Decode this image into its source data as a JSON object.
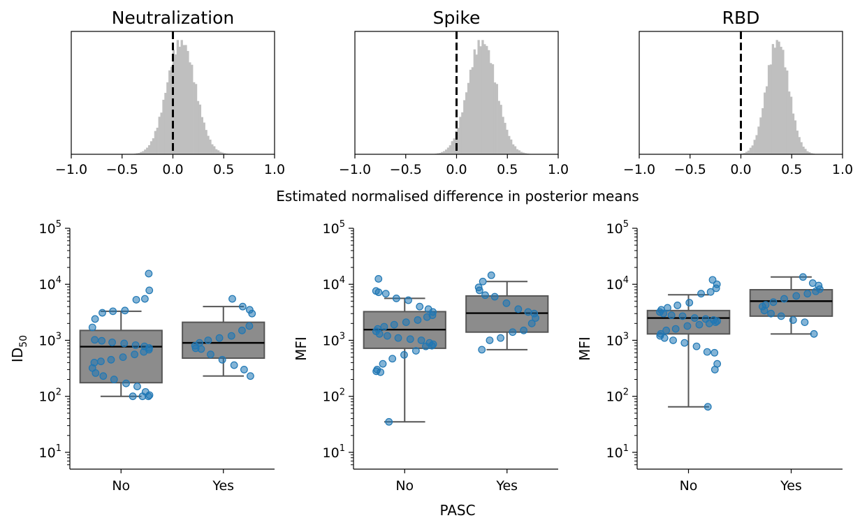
{
  "figure": {
    "shared_xlabel_hist": "Estimated normalised difference in posterior means",
    "shared_xlabel_box": "PASC"
  },
  "colors": {
    "hist_fill": "#bfbfbf",
    "box_fill": "#8c8c8c",
    "box_edge": "#555555",
    "median": "#000000",
    "point": "#1f77b4",
    "zero_line": "#000000"
  },
  "chart_data": [
    {
      "type": "histogram",
      "title": "Neutralization",
      "xlim": [
        -1.0,
        1.0
      ],
      "xticks": [
        "−1.0",
        "−0.5",
        "0.0",
        "0.5",
        "1.0"
      ],
      "xtick_values": [
        -1.0,
        -0.5,
        0.0,
        0.5,
        1.0
      ],
      "reference_line_x": 0.0,
      "mean": 0.08,
      "sd": 0.14
    },
    {
      "type": "histogram",
      "title": "Spike",
      "xlim": [
        -1.0,
        1.0
      ],
      "xticks": [
        "−1.0",
        "−0.5",
        "0.0",
        "0.5",
        "1.0"
      ],
      "xtick_values": [
        -1.0,
        -0.5,
        0.0,
        0.5,
        1.0
      ],
      "reference_line_x": 0.0,
      "mean": 0.25,
      "sd": 0.14
    },
    {
      "type": "histogram",
      "title": "RBD",
      "xlim": [
        -1.0,
        1.0
      ],
      "xticks": [
        "−1.0",
        "−0.5",
        "0.0",
        "0.5",
        "1.0"
      ],
      "xtick_values": [
        -1.0,
        -0.5,
        0.0,
        0.5,
        1.0
      ],
      "reference_line_x": 0.0,
      "mean": 0.36,
      "sd": 0.11
    },
    {
      "type": "box",
      "ylabel_main": "ID",
      "ylabel_sub": "50",
      "yscale": "log",
      "ylim_log10": [
        0.7,
        5.0
      ],
      "yticks": [
        {
          "base": "10",
          "exp": "1",
          "v": 1
        },
        {
          "base": "10",
          "exp": "2",
          "v": 2
        },
        {
          "base": "10",
          "exp": "3",
          "v": 3
        },
        {
          "base": "10",
          "exp": "4",
          "v": 4
        },
        {
          "base": "10",
          "exp": "5",
          "v": 5
        }
      ],
      "categories": [
        "No",
        "Yes"
      ],
      "boxes": [
        {
          "whislo": 100,
          "q1": 175,
          "med": 770,
          "q3": 1500,
          "whishi": 3300,
          "points": [
            100,
            100,
            100,
            105,
            120,
            150,
            170,
            200,
            230,
            260,
            320,
            400,
            420,
            450,
            500,
            560,
            620,
            680,
            730,
            780,
            820,
            880,
            920,
            980,
            1020,
            1700,
            2400,
            3100,
            3300,
            3400,
            5300,
            5500,
            7800,
            15500
          ]
        },
        {
          "whislo": 230,
          "q1": 480,
          "med": 900,
          "q3": 2100,
          "whishi": 4000,
          "points": [
            230,
            300,
            360,
            450,
            560,
            700,
            720,
            800,
            900,
            1000,
            1100,
            1200,
            1500,
            1800,
            3000,
            3500,
            4000,
            5500
          ]
        }
      ]
    },
    {
      "type": "box",
      "ylabel_main": "MFI",
      "ylabel_sub": "",
      "yscale": "log",
      "ylim_log10": [
        0.7,
        5.0
      ],
      "yticks": [
        {
          "base": "10",
          "exp": "1",
          "v": 1
        },
        {
          "base": "10",
          "exp": "2",
          "v": 2
        },
        {
          "base": "10",
          "exp": "3",
          "v": 3
        },
        {
          "base": "10",
          "exp": "4",
          "v": 4
        },
        {
          "base": "10",
          "exp": "5",
          "v": 5
        }
      ],
      "categories": [
        "No",
        "Yes"
      ],
      "boxes": [
        {
          "whislo": 35,
          "q1": 720,
          "med": 1550,
          "q3": 3250,
          "whishi": 5600,
          "points": [
            35,
            270,
            280,
            300,
            380,
            470,
            550,
            650,
            780,
            800,
            850,
            900,
            1000,
            1050,
            1100,
            1200,
            1300,
            1450,
            1600,
            1750,
            1900,
            2100,
            2300,
            2600,
            2800,
            3200,
            3600,
            4000,
            5200,
            5600,
            6800,
            7200,
            7600,
            12500
          ]
        },
        {
          "whislo": 680,
          "q1": 1400,
          "med": 3050,
          "q3": 6200,
          "whishi": 11200,
          "points": [
            680,
            1000,
            1100,
            1400,
            1500,
            2000,
            2500,
            3000,
            3200,
            3600,
            4600,
            6000,
            6400,
            7800,
            8800,
            11200,
            14500
          ]
        }
      ]
    },
    {
      "type": "box",
      "ylabel_main": "MFI",
      "ylabel_sub": "",
      "yscale": "log",
      "ylim_log10": [
        0.7,
        5.0
      ],
      "yticks": [
        {
          "base": "10",
          "exp": "1",
          "v": 1
        },
        {
          "base": "10",
          "exp": "2",
          "v": 2
        },
        {
          "base": "10",
          "exp": "3",
          "v": 3
        },
        {
          "base": "10",
          "exp": "4",
          "v": 4
        },
        {
          "base": "10",
          "exp": "5",
          "v": 5
        }
      ],
      "categories": [
        "No",
        "Yes"
      ],
      "boxes": [
        {
          "whislo": 65,
          "q1": 1300,
          "med": 2500,
          "q3": 3400,
          "whishi": 6500,
          "points": [
            65,
            300,
            380,
            600,
            620,
            780,
            900,
            1000,
            1100,
            1200,
            1300,
            1500,
            1600,
            1800,
            1900,
            2000,
            2100,
            2200,
            2300,
            2400,
            2500,
            2700,
            2800,
            3000,
            3200,
            3500,
            3800,
            4200,
            4700,
            6800,
            7300,
            8500,
            10000,
            12000
          ]
        },
        {
          "whislo": 1300,
          "q1": 2700,
          "med": 5000,
          "q3": 8000,
          "whishi": 13500,
          "points": [
            1300,
            2100,
            2300,
            2700,
            3000,
            3400,
            4000,
            4300,
            4800,
            5500,
            6200,
            6800,
            7500,
            8200,
            9500,
            10500,
            13500
          ]
        }
      ]
    }
  ]
}
